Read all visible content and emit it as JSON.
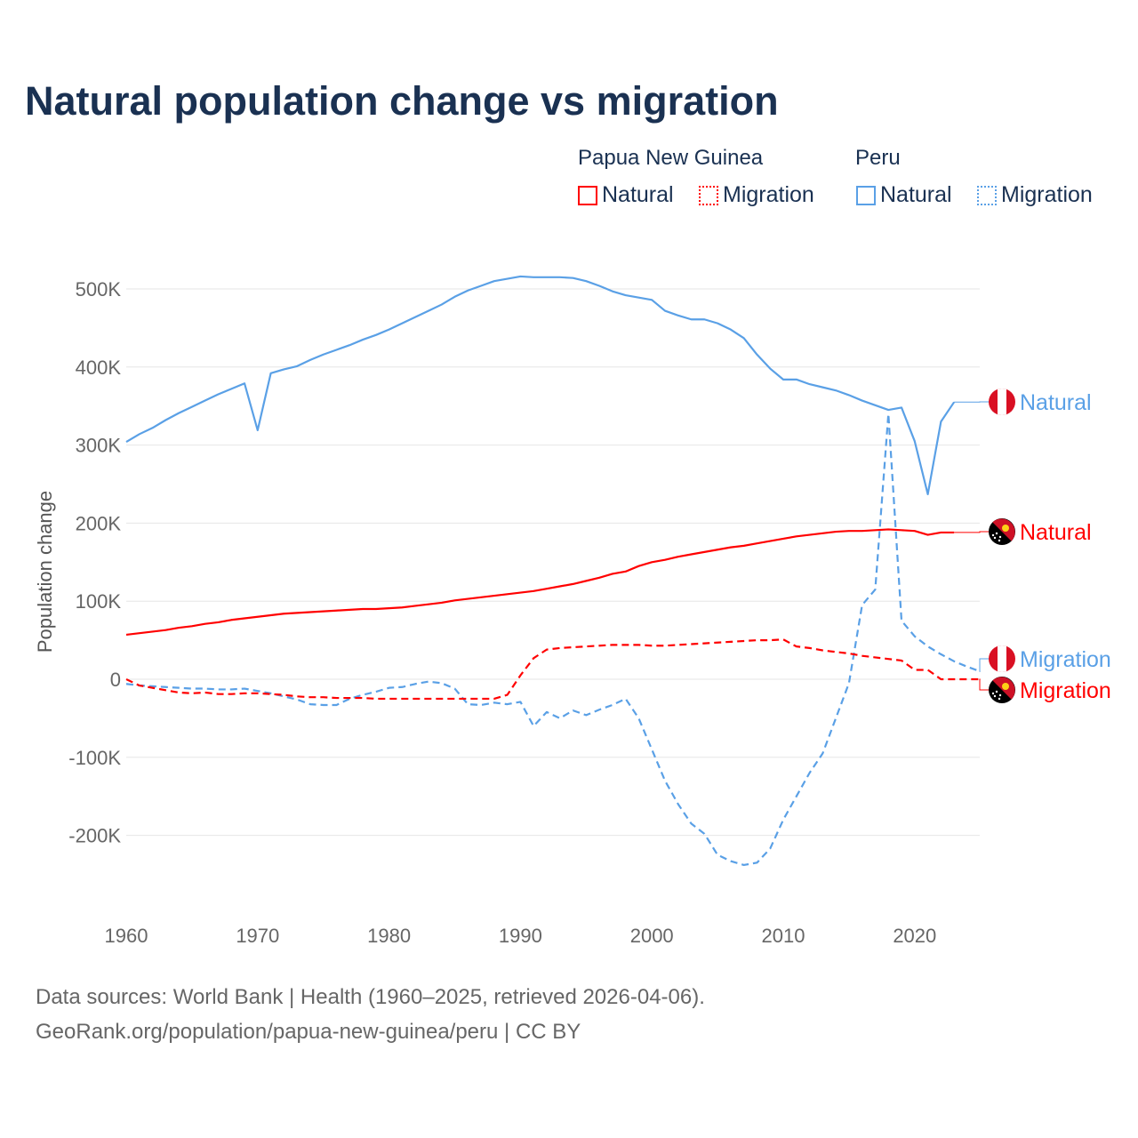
{
  "chart_data": {
    "type": "line",
    "title": "Natural population change vs migration",
    "xlabel": "",
    "ylabel": "Population change",
    "xlim": [
      1960,
      2025
    ],
    "ylim": [
      -290000,
      560000
    ],
    "x_ticks": [
      1960,
      1970,
      1980,
      1990,
      2000,
      2010,
      2020
    ],
    "y_ticks": [
      -200000,
      -100000,
      0,
      100000,
      200000,
      300000,
      400000,
      500000
    ],
    "y_tick_labels": [
      "-200K",
      "-100K",
      "0",
      "100K",
      "200K",
      "300K",
      "400K",
      "500K"
    ],
    "grid": true,
    "legend": {
      "placement": "top-right",
      "groups": [
        {
          "name": "Papua New Guinea",
          "items": [
            "Natural",
            "Migration"
          ]
        },
        {
          "name": "Peru",
          "items": [
            "Natural",
            "Migration"
          ]
        }
      ]
    },
    "series": [
      {
        "name": "Peru Natural",
        "country": "Peru",
        "kind": "Natural",
        "color": "#5aa0e6",
        "dashed": false,
        "start": 1960,
        "values": [
          304,
          314,
          322,
          332,
          341,
          349,
          357,
          365,
          372,
          379,
          319,
          392,
          397,
          401,
          409,
          416,
          422,
          428,
          435,
          441,
          448,
          456,
          464,
          472,
          480,
          490,
          498,
          504,
          510,
          513,
          516,
          515,
          515,
          515,
          514,
          510,
          504,
          497,
          492,
          489,
          486,
          472,
          466,
          461,
          461,
          456,
          448,
          437,
          416,
          398,
          384,
          384,
          378,
          374,
          370,
          364,
          357,
          351,
          345,
          348,
          305,
          237,
          330,
          355
        ]
      },
      {
        "name": "PNG Natural",
        "country": "Papua New Guinea",
        "kind": "Natural",
        "color": "#ff0000",
        "dashed": false,
        "start": 1960,
        "values": [
          57,
          59,
          61,
          63,
          66,
          68,
          71,
          73,
          76,
          78,
          80,
          82,
          84,
          85,
          86,
          87,
          88,
          89,
          90,
          90,
          91,
          92,
          94,
          96,
          98,
          101,
          103,
          105,
          107,
          109,
          111,
          113,
          116,
          119,
          122,
          126,
          130,
          135,
          138,
          145,
          150,
          153,
          157,
          160,
          163,
          166,
          169,
          171,
          174,
          177,
          180,
          183,
          185,
          187,
          189,
          190,
          190,
          191,
          192,
          191,
          190,
          185,
          188,
          188
        ]
      },
      {
        "name": "Peru Migration",
        "country": "Peru",
        "kind": "Migration",
        "color": "#5aa0e6",
        "dashed": true,
        "start": 1960,
        "values": [
          -6,
          -8,
          -9,
          -10,
          -11,
          -12,
          -12,
          -13,
          -13,
          -12,
          -15,
          -18,
          -22,
          -26,
          -32,
          -33,
          -33,
          -25,
          -20,
          -16,
          -11,
          -10,
          -6,
          -3,
          -5,
          -12,
          -32,
          -33,
          -30,
          -32,
          -29,
          -60,
          -42,
          -50,
          -40,
          -46,
          -39,
          -33,
          -25,
          -50,
          -90,
          -130,
          -160,
          -185,
          -198,
          -225,
          -233,
          -238,
          -235,
          -217,
          -180,
          -150,
          -120,
          -95,
          -50,
          -5,
          95,
          115,
          340,
          75,
          55,
          42,
          32,
          23,
          16,
          10
        ]
      },
      {
        "name": "PNG Migration",
        "country": "Papua New Guinea",
        "kind": "Migration",
        "color": "#ff0000",
        "dashed": true,
        "start": 1960,
        "values": [
          0,
          -8,
          -11,
          -14,
          -17,
          -18,
          -17,
          -19,
          -19,
          -18,
          -18,
          -19,
          -20,
          -22,
          -23,
          -23,
          -24,
          -24,
          -24,
          -25,
          -25,
          -25,
          -25,
          -25,
          -25,
          -25,
          -25,
          -25,
          -25,
          -20,
          5,
          27,
          38,
          40,
          41,
          42,
          43,
          44,
          44,
          44,
          43,
          43,
          44,
          45,
          46,
          47,
          48,
          49,
          50,
          50,
          51,
          42,
          40,
          37,
          35,
          33,
          30,
          28,
          26,
          24,
          12,
          12,
          0,
          0,
          0,
          0
        ]
      }
    ],
    "end_labels": [
      {
        "text": "Natural",
        "series": "Peru Natural",
        "flag": "peru-flag"
      },
      {
        "text": "Natural",
        "series": "PNG Natural",
        "flag": "png-flag"
      },
      {
        "text": "Migration",
        "series": "Peru Migration",
        "flag": "peru-flag"
      },
      {
        "text": "Migration",
        "series": "PNG Migration",
        "flag": "png-flag"
      }
    ],
    "value_unit": "thousands"
  },
  "footer": {
    "line1": "Data sources: World Bank | Health (1960–2025, retrieved 2026-04-06).",
    "line2": "GeoRank.org/population/papua-new-guinea/peru | CC BY"
  }
}
